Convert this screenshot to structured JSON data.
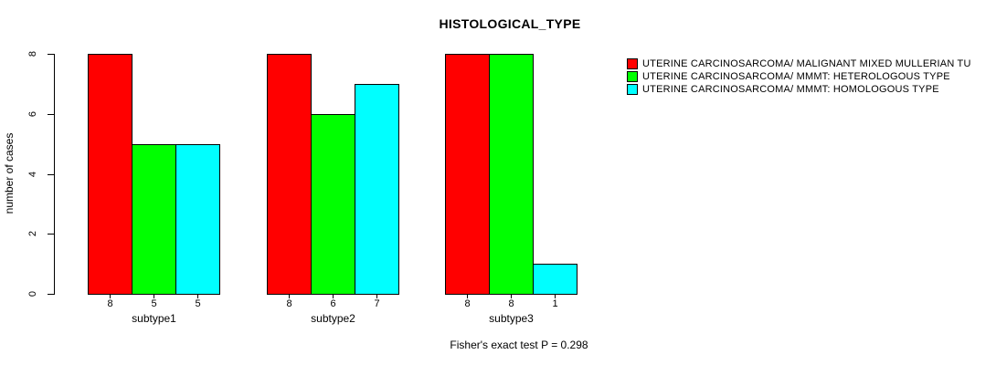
{
  "chart_data": {
    "type": "bar",
    "title": "HISTOLOGICAL_TYPE",
    "ylabel": "number of cases",
    "xlabel": "",
    "categories": [
      "subtype1",
      "subtype2",
      "subtype3"
    ],
    "series": [
      {
        "name": "UTERINE CARCINOSARCOMA/ MALIGNANT MIXED MULLERIAN TU",
        "color": "#ff0000",
        "values": [
          8,
          8,
          8
        ]
      },
      {
        "name": "UTERINE CARCINOSARCOMA/ MMMT: HETEROLOGOUS TYPE",
        "color": "#00ff00",
        "values": [
          5,
          6,
          8
        ]
      },
      {
        "name": "UTERINE CARCINOSARCOMA/ MMMT: HOMOLOGOUS TYPE",
        "color": "#00ffff",
        "values": [
          5,
          7,
          1
        ]
      }
    ],
    "ylim": [
      0,
      8
    ],
    "yticks": [
      0,
      2,
      4,
      6,
      8
    ],
    "bar_value_labels": true,
    "grid": false,
    "legend_position": "top-right",
    "annotation": "Fisher's exact test P = 0.298"
  },
  "colors": {
    "background": "#ffffff",
    "axis": "#000000",
    "text": "#000000",
    "bar_border": "#000000"
  }
}
